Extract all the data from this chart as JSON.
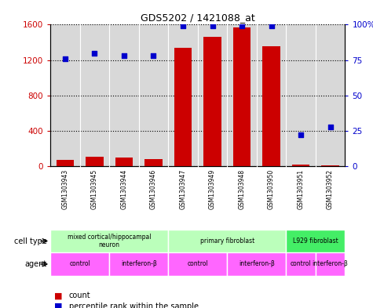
{
  "title": "GDS5202 / 1421088_at",
  "samples": [
    "GSM1303943",
    "GSM1303945",
    "GSM1303944",
    "GSM1303946",
    "GSM1303947",
    "GSM1303949",
    "GSM1303948",
    "GSM1303950",
    "GSM1303951",
    "GSM1303952"
  ],
  "counts": [
    75,
    110,
    95,
    85,
    1340,
    1460,
    1570,
    1360,
    20,
    15
  ],
  "percentiles": [
    76,
    80,
    78,
    78,
    99,
    99,
    99,
    99,
    22,
    28
  ],
  "ylim_left": [
    0,
    1600
  ],
  "ylim_right": [
    0,
    100
  ],
  "yticks_left": [
    0,
    400,
    800,
    1200,
    1600
  ],
  "yticks_right": [
    0,
    25,
    50,
    75,
    100
  ],
  "cell_types": [
    {
      "label": "mixed cortical/hippocampal neuron",
      "start": 0,
      "end": 4,
      "color": "#bbffbb"
    },
    {
      "label": "primary fibroblast",
      "start": 4,
      "end": 8,
      "color": "#bbffbb"
    },
    {
      "label": "L929 fibroblast",
      "start": 8,
      "end": 10,
      "color": "#44ee66"
    }
  ],
  "agents": [
    {
      "label": "control",
      "start": 0,
      "end": 2,
      "color": "#ff66ff"
    },
    {
      "label": "interferon-β",
      "start": 2,
      "end": 4,
      "color": "#ff66ff"
    },
    {
      "label": "control",
      "start": 4,
      "end": 6,
      "color": "#ff66ff"
    },
    {
      "label": "interferon-β",
      "start": 6,
      "end": 8,
      "color": "#ff66ff"
    },
    {
      "label": "control",
      "start": 8,
      "end": 9,
      "color": "#ff66ff"
    },
    {
      "label": "interferon-β",
      "start": 9,
      "end": 10,
      "color": "#ff66ff"
    }
  ],
  "bar_color": "#cc0000",
  "dot_color": "#0000cc",
  "grid_color": "black",
  "plot_bg_color": "#d8d8d8",
  "label_color_left": "#cc0000",
  "label_color_right": "#0000cc",
  "left_panel_labels": [
    "cell type",
    "agent"
  ],
  "legend_items": [
    {
      "color": "#cc0000",
      "label": "count"
    },
    {
      "color": "#0000cc",
      "label": "percentile rank within the sample"
    }
  ]
}
